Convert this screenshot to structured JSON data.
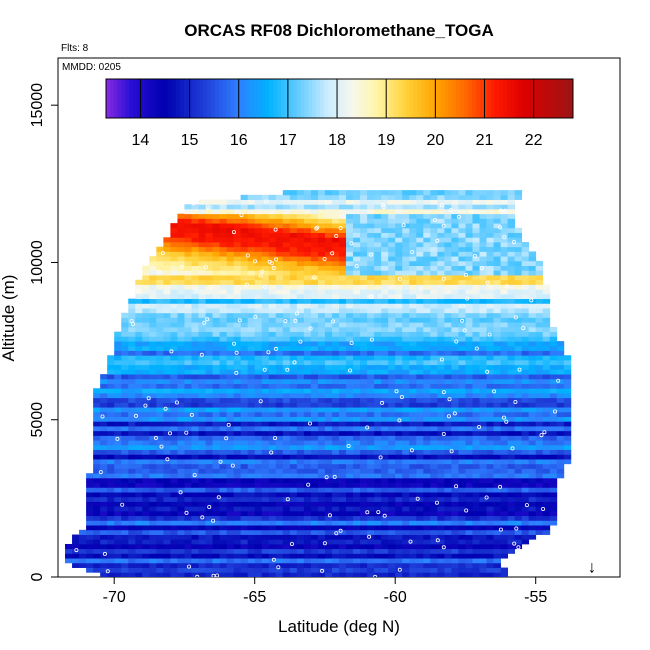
{
  "chart_data": {
    "type": "heatmap",
    "title": "ORCAS RF08 Dichloromethane_TOGA",
    "xlabel": "Latitude (deg N)",
    "ylabel": "Altitude (m)",
    "xlim": [
      -72,
      -52
    ],
    "ylim": [
      0,
      16500
    ],
    "x_ticks": [
      -70,
      -65,
      -60,
      -55
    ],
    "x_tick_labels": [
      "-70",
      "-65",
      "-60",
      "-55"
    ],
    "y_ticks": [
      0,
      5000,
      10000,
      15000
    ],
    "y_tick_labels": [
      "0",
      "5000",
      "10000",
      "15000"
    ],
    "flights_label": "Flts: 8",
    "date_label": "MMDD: 0205",
    "colorbar": {
      "min": 13.3,
      "max": 22.8,
      "ticks": [
        14,
        15,
        16,
        17,
        18,
        19,
        20,
        21,
        22
      ],
      "tick_labels": [
        "14",
        "15",
        "16",
        "17",
        "18",
        "19",
        "20",
        "21",
        "22"
      ],
      "color_stops": [
        {
          "value": 13.3,
          "color": "#8a2be2"
        },
        {
          "value": 13.8,
          "color": "#2a0fd6"
        },
        {
          "value": 14.5,
          "color": "#0000b0"
        },
        {
          "value": 15.3,
          "color": "#1f3ed8"
        },
        {
          "value": 16.0,
          "color": "#2f7fff"
        },
        {
          "value": 16.6,
          "color": "#00b2ff"
        },
        {
          "value": 17.2,
          "color": "#62cbff"
        },
        {
          "value": 17.8,
          "color": "#c9ecff"
        },
        {
          "value": 18.3,
          "color": "#f7f7ee"
        },
        {
          "value": 18.8,
          "color": "#fff5a8"
        },
        {
          "value": 19.4,
          "color": "#ffd23a"
        },
        {
          "value": 20.0,
          "color": "#ffa500"
        },
        {
          "value": 20.6,
          "color": "#ff6a00"
        },
        {
          "value": 21.2,
          "color": "#ff1a00"
        },
        {
          "value": 21.8,
          "color": "#dd0000"
        },
        {
          "value": 22.8,
          "color": "#9b1414"
        }
      ]
    },
    "envelope": {
      "altitudes": [
        0,
        500,
        1000,
        1500,
        2000,
        3000,
        4000,
        5000,
        6000,
        7000,
        8000,
        9000,
        10000,
        11000,
        11900,
        12300
      ],
      "lat_min": [
        -70.3,
        -71.6,
        -71.6,
        -71.0,
        -70.8,
        -70.8,
        -70.6,
        -70.6,
        -70.5,
        -70.0,
        -69.7,
        -69.2,
        -68.7,
        -67.9,
        -67.2,
        -63.2
      ],
      "lat_max": [
        -56.2,
        -56.3,
        -55.5,
        -54.6,
        -54.3,
        -54.3,
        -53.8,
        -53.8,
        -53.9,
        -54.0,
        -54.5,
        -54.6,
        -55.0,
        -55.7,
        -56.0,
        -55.4
      ]
    },
    "concentration_profile": {
      "altitudes": [
        0,
        1000,
        2000,
        3000,
        4000,
        5000,
        6000,
        7000,
        8000,
        8800,
        9400,
        10000,
        10500,
        11000,
        11500,
        12000
      ],
      "values": [
        15.0,
        15.1,
        15.2,
        15.0,
        15.4,
        15.6,
        16.3,
        16.1,
        16.6,
        17.5,
        18.5,
        19.6,
        21.2,
        21.5,
        19.5,
        17.6
      ]
    },
    "annotation": {
      "symbol": "↓",
      "latitude": -53,
      "altitude": 200
    }
  }
}
